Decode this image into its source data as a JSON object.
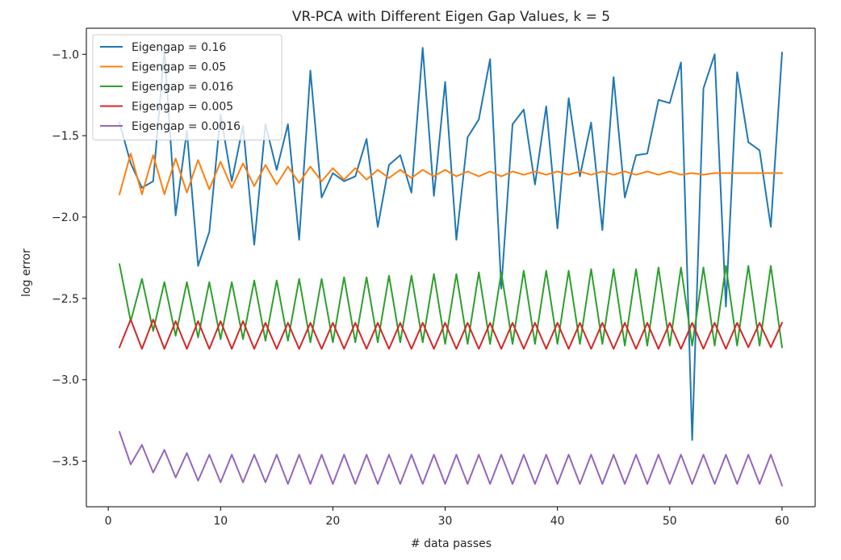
{
  "chart_data": {
    "type": "line",
    "title": "VR-PCA with Different Eigen Gap Values, k = 5",
    "xlabel": "# data passes",
    "ylabel": "log error",
    "xlim": [
      -1.95,
      62.95
    ],
    "ylim": [
      -3.78,
      -0.84
    ],
    "xticks": [
      0,
      10,
      20,
      30,
      40,
      50,
      60
    ],
    "yticks": [
      -1.0,
      -1.5,
      -2.0,
      -2.5,
      -3.0,
      -3.5
    ],
    "xtick_labels": [
      "0",
      "10",
      "20",
      "30",
      "40",
      "50",
      "60"
    ],
    "ytick_labels": [
      "−1.0",
      "−1.5",
      "−2.0",
      "−2.5",
      "−3.0",
      "−3.5"
    ],
    "grid": false,
    "legend_position": "top-left",
    "x": [
      1,
      2,
      3,
      4,
      5,
      6,
      7,
      8,
      9,
      10,
      11,
      12,
      13,
      14,
      15,
      16,
      17,
      18,
      19,
      20,
      21,
      22,
      23,
      24,
      25,
      26,
      27,
      28,
      29,
      30,
      31,
      32,
      33,
      34,
      35,
      36,
      37,
      38,
      39,
      40,
      41,
      42,
      43,
      44,
      45,
      46,
      47,
      48,
      49,
      50,
      51,
      52,
      53,
      54,
      55,
      56,
      57,
      58,
      59,
      60
    ],
    "series": [
      {
        "name": "Eigengap = 0.16",
        "color": "#1f77b4",
        "values": [
          -1.42,
          -1.67,
          -1.82,
          -1.78,
          -0.97,
          -1.99,
          -1.47,
          -2.3,
          -2.09,
          -1.37,
          -1.78,
          -1.44,
          -2.17,
          -1.43,
          -1.71,
          -1.43,
          -2.14,
          -1.1,
          -1.88,
          -1.73,
          -1.78,
          -1.75,
          -1.52,
          -2.06,
          -1.68,
          -1.62,
          -1.85,
          -0.96,
          -1.87,
          -1.17,
          -2.14,
          -1.51,
          -1.4,
          -1.03,
          -2.44,
          -1.43,
          -1.34,
          -1.8,
          -1.32,
          -2.07,
          -1.27,
          -1.75,
          -1.42,
          -2.08,
          -1.14,
          -1.88,
          -1.62,
          -1.61,
          -1.28,
          -1.3,
          -1.05,
          -3.37,
          -1.21,
          -1.0,
          -2.55,
          -1.11,
          -1.54,
          -1.59,
          -2.06,
          -0.99
        ]
      },
      {
        "name": "Eigengap = 0.05",
        "color": "#ff7f0e",
        "values": [
          -1.86,
          -1.61,
          -1.86,
          -1.62,
          -1.86,
          -1.64,
          -1.85,
          -1.65,
          -1.83,
          -1.66,
          -1.82,
          -1.67,
          -1.81,
          -1.68,
          -1.8,
          -1.69,
          -1.79,
          -1.69,
          -1.78,
          -1.7,
          -1.77,
          -1.7,
          -1.77,
          -1.71,
          -1.76,
          -1.71,
          -1.76,
          -1.71,
          -1.75,
          -1.71,
          -1.75,
          -1.72,
          -1.75,
          -1.72,
          -1.75,
          -1.72,
          -1.74,
          -1.72,
          -1.74,
          -1.72,
          -1.74,
          -1.72,
          -1.74,
          -1.72,
          -1.74,
          -1.72,
          -1.74,
          -1.72,
          -1.74,
          -1.72,
          -1.74,
          -1.73,
          -1.74,
          -1.73,
          -1.73,
          -1.73,
          -1.73,
          -1.73,
          -1.73,
          -1.73
        ]
      },
      {
        "name": "Eigengap = 0.016",
        "color": "#2ca02c",
        "values": [
          -2.29,
          -2.64,
          -2.38,
          -2.7,
          -2.4,
          -2.73,
          -2.4,
          -2.74,
          -2.4,
          -2.75,
          -2.4,
          -2.75,
          -2.39,
          -2.76,
          -2.39,
          -2.76,
          -2.38,
          -2.77,
          -2.38,
          -2.77,
          -2.37,
          -2.77,
          -2.37,
          -2.77,
          -2.36,
          -2.77,
          -2.36,
          -2.77,
          -2.35,
          -2.78,
          -2.35,
          -2.78,
          -2.34,
          -2.78,
          -2.34,
          -2.78,
          -2.33,
          -2.78,
          -2.33,
          -2.78,
          -2.33,
          -2.78,
          -2.32,
          -2.78,
          -2.32,
          -2.79,
          -2.32,
          -2.79,
          -2.31,
          -2.79,
          -2.31,
          -2.79,
          -2.31,
          -2.79,
          -2.3,
          -2.79,
          -2.3,
          -2.79,
          -2.3,
          -2.8
        ]
      },
      {
        "name": "Eigengap = 0.005",
        "color": "#d62728",
        "values": [
          -2.8,
          -2.63,
          -2.81,
          -2.63,
          -2.81,
          -2.64,
          -2.81,
          -2.64,
          -2.81,
          -2.64,
          -2.81,
          -2.64,
          -2.81,
          -2.65,
          -2.81,
          -2.65,
          -2.81,
          -2.65,
          -2.81,
          -2.65,
          -2.81,
          -2.65,
          -2.81,
          -2.65,
          -2.81,
          -2.65,
          -2.81,
          -2.65,
          -2.81,
          -2.65,
          -2.81,
          -2.65,
          -2.81,
          -2.65,
          -2.81,
          -2.65,
          -2.81,
          -2.65,
          -2.81,
          -2.65,
          -2.81,
          -2.65,
          -2.81,
          -2.65,
          -2.81,
          -2.65,
          -2.81,
          -2.65,
          -2.81,
          -2.65,
          -2.81,
          -2.65,
          -2.81,
          -2.65,
          -2.81,
          -2.65,
          -2.8,
          -2.65,
          -2.8,
          -2.65
        ]
      },
      {
        "name": "Eigengap = 0.0016",
        "color": "#9467bd",
        "values": [
          -3.32,
          -3.52,
          -3.4,
          -3.57,
          -3.43,
          -3.6,
          -3.45,
          -3.62,
          -3.46,
          -3.63,
          -3.46,
          -3.63,
          -3.46,
          -3.63,
          -3.46,
          -3.64,
          -3.46,
          -3.64,
          -3.46,
          -3.64,
          -3.46,
          -3.64,
          -3.46,
          -3.64,
          -3.46,
          -3.64,
          -3.46,
          -3.64,
          -3.46,
          -3.64,
          -3.46,
          -3.64,
          -3.46,
          -3.64,
          -3.46,
          -3.64,
          -3.46,
          -3.64,
          -3.46,
          -3.64,
          -3.46,
          -3.64,
          -3.46,
          -3.64,
          -3.46,
          -3.64,
          -3.46,
          -3.64,
          -3.46,
          -3.64,
          -3.46,
          -3.64,
          -3.46,
          -3.64,
          -3.46,
          -3.64,
          -3.46,
          -3.64,
          -3.46,
          -3.65
        ]
      }
    ]
  }
}
